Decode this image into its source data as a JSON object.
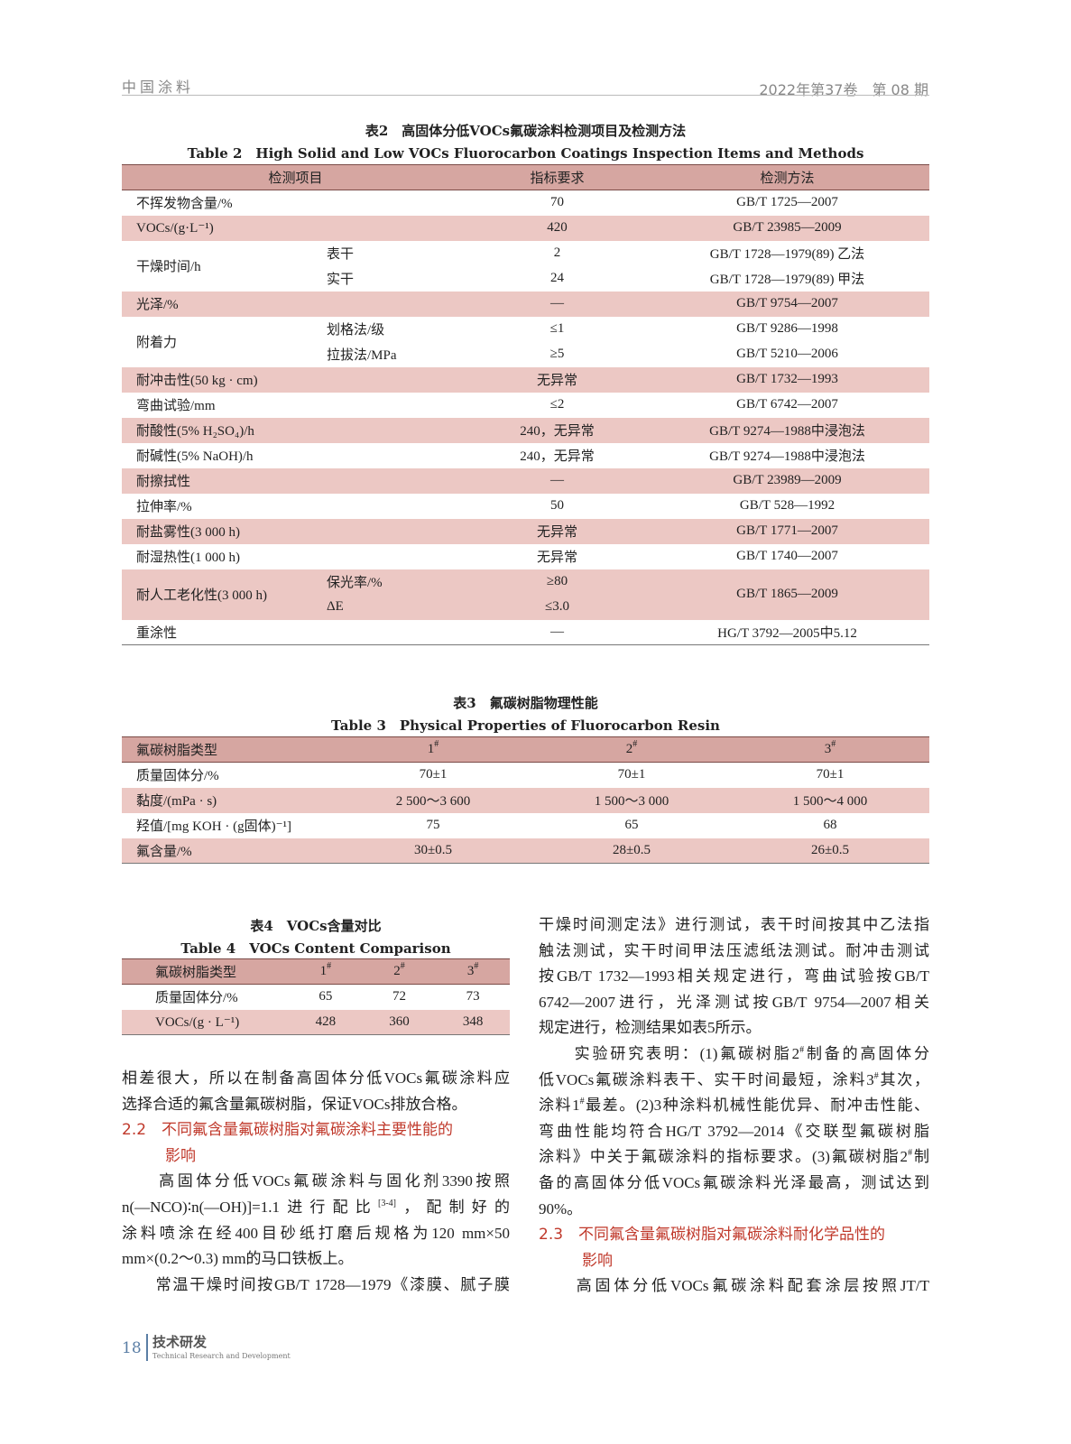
{
  "header": {
    "journal": "中国涂料",
    "issue": "2022年第37卷　第 08 期"
  },
  "table2": {
    "caption_cn": "表2　高固体分低VOCs氟碳涂料检测项目及检测方法",
    "caption_en": "Table 2　High Solid and Low VOCs Fluorocarbon Coatings Inspection Items and Methods",
    "headers": [
      "检测项目",
      "指标要求",
      "检测方法"
    ],
    "groups": [
      {
        "item": "不挥发物含量/%",
        "shaded": false,
        "subs": [
          {
            "sub": "",
            "req": "70",
            "method": "GB/T 1725—2007"
          }
        ]
      },
      {
        "item": "VOCs/(g·L⁻¹)",
        "shaded": true,
        "subs": [
          {
            "sub": "",
            "req": "420",
            "method": "GB/T 23985—2009"
          }
        ]
      },
      {
        "item": "干燥时间/h",
        "shaded": false,
        "subs": [
          {
            "sub": "表干",
            "req": "2",
            "method": "GB/T 1728—1979(89) 乙法"
          },
          {
            "sub": "实干",
            "req": "24",
            "method": "GB/T 1728—1979(89) 甲法"
          }
        ]
      },
      {
        "item": "光泽/%",
        "shaded": true,
        "subs": [
          {
            "sub": "",
            "req": "—",
            "method": "GB/T 9754—2007"
          }
        ]
      },
      {
        "item": "附着力",
        "shaded": false,
        "subs": [
          {
            "sub": "划格法/级",
            "req": "≤1",
            "method": "GB/T 9286—1998"
          },
          {
            "sub": "拉拔法/MPa",
            "req": "≥5",
            "method": "GB/T 5210—2006"
          }
        ]
      },
      {
        "item": "耐冲击性(50 kg · cm)",
        "shaded": true,
        "subs": [
          {
            "sub": "",
            "req": "无异常",
            "method": "GB/T 1732—1993"
          }
        ]
      },
      {
        "item": "弯曲试验/mm",
        "shaded": false,
        "subs": [
          {
            "sub": "",
            "req": "≤2",
            "method": "GB/T 6742—2007"
          }
        ]
      },
      {
        "item": "耐酸性(5% H₂SO₄)/h",
        "shaded": true,
        "subs": [
          {
            "sub": "",
            "req": "240，无异常",
            "method": "GB/T 9274—1988中浸泡法"
          }
        ]
      },
      {
        "item": "耐碱性(5% NaOH)/h",
        "shaded": false,
        "subs": [
          {
            "sub": "",
            "req": "240，无异常",
            "method": "GB/T 9274—1988中浸泡法"
          }
        ]
      },
      {
        "item": "耐擦拭性",
        "shaded": true,
        "subs": [
          {
            "sub": "",
            "req": "—",
            "method": "GB/T 23989—2009"
          }
        ]
      },
      {
        "item": "拉伸率/%",
        "shaded": false,
        "subs": [
          {
            "sub": "",
            "req": "50",
            "method": "GB/T 528—1992"
          }
        ]
      },
      {
        "item": "耐盐雾性(3 000 h)",
        "shaded": true,
        "subs": [
          {
            "sub": "",
            "req": "无异常",
            "method": "GB/T 1771—2007"
          }
        ]
      },
      {
        "item": "耐湿热性(1 000 h)",
        "shaded": false,
        "subs": [
          {
            "sub": "",
            "req": "无异常",
            "method": "GB/T 1740—2007"
          }
        ]
      },
      {
        "item": "耐人工老化性(3 000 h)",
        "shaded": true,
        "subs": [
          {
            "sub": "保光率/%",
            "req": "≥80",
            "method": "GB/T 1865—2009"
          },
          {
            "sub": "ΔE",
            "req": "≤3.0",
            "method": ""
          }
        ]
      },
      {
        "item": "重涂性",
        "shaded": false,
        "subs": [
          {
            "sub": "",
            "req": "—",
            "method": "HG/T 3792—2005中5.12"
          }
        ]
      }
    ]
  },
  "table3": {
    "caption_cn": "表3　氟碳树脂物理性能",
    "caption_en": "Table 3　Physical Properties of Fluorocarbon Resin",
    "headers": [
      "氟碳树脂类型",
      "1#",
      "2#",
      "3#"
    ],
    "rows": [
      [
        "质量固体分/%",
        "70±1",
        "70±1",
        "70±1"
      ],
      [
        "黏度/(mPa · s)",
        "2 500～3 600",
        "1 500～3 000",
        "1 500～4 000"
      ],
      [
        "羟值/[mg KOH · (g固体)⁻¹]",
        "75",
        "65",
        "68"
      ],
      [
        "氟含量/%",
        "30±0.5",
        "28±0.5",
        "26±0.5"
      ]
    ]
  },
  "table4": {
    "caption_cn": "表4　VOCs含量对比",
    "caption_en": "Table 4　VOCs Content Comparison",
    "headers": [
      "氟碳树脂类型",
      "1#",
      "2#",
      "3#"
    ],
    "rows": [
      [
        "质量固体分/%",
        "65",
        "72",
        "73"
      ],
      [
        "VOCs/(g · L⁻¹)",
        "428",
        "360",
        "348"
      ]
    ]
  },
  "left_column": [
    {
      "type": "p",
      "segs": [
        {
          "t": "相差很大，所以在制备高固体分低VOCs氟碳涂料应"
        }
      ]
    },
    {
      "type": "short",
      "segs": [
        {
          "t": "选择合适的氟含量氟碳树脂，保证VOCs排放合格。"
        }
      ]
    },
    {
      "type": "red",
      "segs": [
        {
          "t": "2.2　不同氟含量氟碳树脂对氟碳涂料主要性能的"
        }
      ]
    },
    {
      "type": "red",
      "indent": true,
      "segs": [
        {
          "t": "影响"
        }
      ]
    },
    {
      "type": "p",
      "segs": [
        {
          "t": "　　高固体分低VOCs氟碳涂料与固化剂3390按照"
        }
      ]
    },
    {
      "type": "p",
      "segs": [
        {
          "t": "n(—NCO)∶n(—OH)]=1.1进行配比"
        },
        {
          "t": "[3-4]",
          "sup": true
        },
        {
          "t": "，配制好的"
        }
      ]
    },
    {
      "type": "p",
      "segs": [
        {
          "t": "涂料喷涂在经400目砂纸打磨后规格为120 mm×50"
        }
      ]
    },
    {
      "type": "short",
      "segs": [
        {
          "t": "mm×(0.2～0.3) mm的马口铁板上。"
        }
      ]
    },
    {
      "type": "p",
      "segs": [
        {
          "t": "　　常温干燥时间按GB/T 1728—1979《漆膜、腻子膜"
        }
      ]
    }
  ],
  "right_column": [
    {
      "type": "p",
      "segs": [
        {
          "t": "干燥时间测定法》进行测试，表干时间按其中乙法指"
        }
      ]
    },
    {
      "type": "p",
      "segs": [
        {
          "t": "触法测试，实干时间甲法压滤纸法测试。耐冲击测试"
        }
      ]
    },
    {
      "type": "p",
      "segs": [
        {
          "t": "按GB/T 1732—1993相关规定进行，弯曲试验按GB/T"
        }
      ]
    },
    {
      "type": "p",
      "segs": [
        {
          "t": "6742—2007进行，光泽测试按GB/T 9754—2007相关"
        }
      ]
    },
    {
      "type": "short",
      "segs": [
        {
          "t": "规定进行，检测结果如表5所示。"
        }
      ]
    },
    {
      "type": "p",
      "segs": [
        {
          "t": "　　实验研究表明：(1)氟碳树脂2"
        },
        {
          "t": "#",
          "sup": true
        },
        {
          "t": "制备的高固体分"
        }
      ]
    },
    {
      "type": "p",
      "segs": [
        {
          "t": "低VOCs氟碳涂料表干、实干时间最短，涂料3"
        },
        {
          "t": "#",
          "sup": true
        },
        {
          "t": "其次，"
        }
      ]
    },
    {
      "type": "p",
      "segs": [
        {
          "t": "涂料1"
        },
        {
          "t": "#",
          "sup": true
        },
        {
          "t": "最差。(2)3种涂料机械性能优异、耐冲击性能、"
        }
      ]
    },
    {
      "type": "p",
      "segs": [
        {
          "t": "弯曲性能均符合HG/T 3792—2014《交联型氟碳树脂"
        }
      ]
    },
    {
      "type": "p",
      "segs": [
        {
          "t": "涂料》中关于氟碳涂料的指标要求。(3)氟碳树脂2"
        },
        {
          "t": "#",
          "sup": true
        },
        {
          "t": "制"
        }
      ]
    },
    {
      "type": "p",
      "segs": [
        {
          "t": "备的高固体分低VOCs氟碳涂料光泽最高，测试达到"
        }
      ]
    },
    {
      "type": "short",
      "segs": [
        {
          "t": "90%。"
        }
      ]
    },
    {
      "type": "red",
      "segs": [
        {
          "t": "2.3　不同氟含量氟碳树脂对氟碳涂料耐化学品性的"
        }
      ]
    },
    {
      "type": "red",
      "indent": true,
      "segs": [
        {
          "t": "影响"
        }
      ]
    },
    {
      "type": "p",
      "segs": [
        {
          "t": "　　高固体分低VOCs氟碳涂料配套涂层按照JT/T"
        }
      ]
    }
  ],
  "footer": {
    "page": "18",
    "section_cn": "技术研发",
    "section_en": "Technical Research and Development"
  }
}
